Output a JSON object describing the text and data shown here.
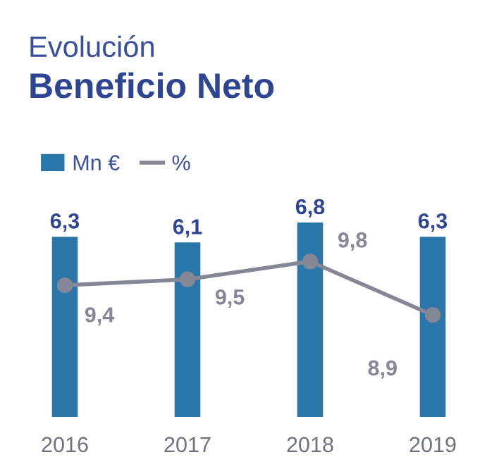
{
  "chart_data": {
    "type": "bar",
    "title": "Evolución",
    "subtitle": "Beneficio Neto",
    "categories": [
      "2016",
      "2017",
      "2018",
      "2019"
    ],
    "series": [
      {
        "name": "Mn €",
        "color": "#2a76a8",
        "values": [
          6.3,
          6.1,
          6.8,
          6.3
        ],
        "value_labels": [
          "6,3",
          "6,1",
          "6,8",
          "6,3"
        ]
      },
      {
        "name": "%",
        "type": "line",
        "axis": "y2",
        "color": "#858797",
        "values": [
          9.4,
          9.5,
          9.8,
          8.9
        ],
        "value_labels": [
          "9,4",
          "9,5",
          "9,8",
          "8,9"
        ]
      }
    ],
    "tick_labels": "x",
    "marker": "circle",
    "line_style": "solid",
    "legend": "top left",
    "grid": false
  }
}
